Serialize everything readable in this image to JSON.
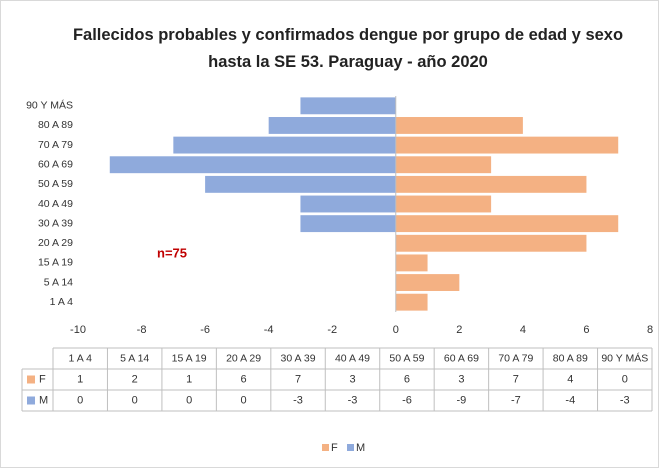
{
  "chart_data": {
    "type": "bar",
    "orientation": "horizontal",
    "stacked": true,
    "title": "Fallecidos probables y confirmados dengue por grupo de edad y sexo hasta la SE 53. Paraguay - año 2020",
    "categories": [
      "1 A 4",
      "5 A 14",
      "15 A 19",
      "20 A 29",
      "30 A 39",
      "40 A 49",
      "50 A 59",
      "60 A 69",
      "70 A 79",
      "80 A 89",
      "90 Y MÁS"
    ],
    "series": [
      {
        "name": "F",
        "color": "#f4b183",
        "values": [
          1,
          2,
          1,
          6,
          7,
          3,
          6,
          3,
          7,
          4,
          0
        ]
      },
      {
        "name": "M",
        "color": "#8faadc",
        "values": [
          0,
          0,
          0,
          0,
          -3,
          -3,
          -6,
          -9,
          -7,
          -4,
          -3
        ]
      }
    ],
    "xlim": [
      -10,
      8
    ],
    "xticks": [
      -10,
      -8,
      -6,
      -4,
      -2,
      0,
      2,
      4,
      6,
      8
    ],
    "annotation": "n=75",
    "data_table": true,
    "legend": "bottom"
  }
}
